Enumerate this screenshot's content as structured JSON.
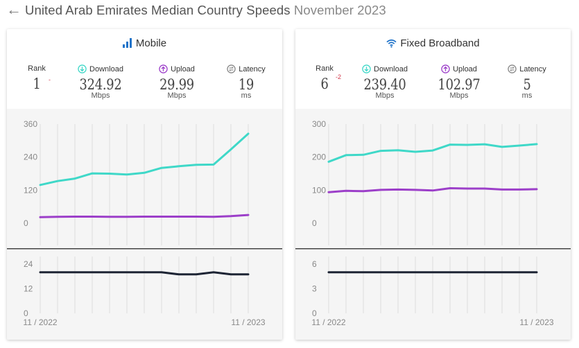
{
  "header": {
    "title": "United Arab Emirates Median Country Speeds",
    "period": "November 2023"
  },
  "colors": {
    "download": "#3fd8c8",
    "upload": "#9c3fc9",
    "latency": "#1d2434",
    "grid": "#dddddd",
    "rank_change": "#d2374b",
    "title_icon": "#1f73c9"
  },
  "cards": [
    {
      "key": "mobile",
      "title": "Mobile",
      "icon": "signal-bars-icon",
      "metrics": {
        "rank": {
          "label": "Rank",
          "value": "1",
          "change": "-"
        },
        "download": {
          "label": "Download",
          "value": "324.92",
          "unit": "Mbps"
        },
        "upload": {
          "label": "Upload",
          "value": "29.99",
          "unit": "Mbps"
        },
        "latency": {
          "label": "Latency",
          "value": "19",
          "unit": "ms"
        }
      }
    },
    {
      "key": "fixed",
      "title": "Fixed Broadband",
      "icon": "wifi-icon",
      "metrics": {
        "rank": {
          "label": "Rank",
          "value": "6",
          "change": "-2"
        },
        "download": {
          "label": "Download",
          "value": "239.40",
          "unit": "Mbps"
        },
        "upload": {
          "label": "Upload",
          "value": "102.97",
          "unit": "Mbps"
        },
        "latency": {
          "label": "Latency",
          "value": "5",
          "unit": "ms"
        }
      }
    }
  ],
  "chart_data": [
    {
      "id": "mobile-speed",
      "type": "line",
      "x": [
        "11/2022",
        "12/2022",
        "01/2023",
        "02/2023",
        "03/2023",
        "04/2023",
        "05/2023",
        "06/2023",
        "07/2023",
        "08/2023",
        "09/2023",
        "10/2023",
        "11/2023"
      ],
      "x_tick_labels": [
        "11 / 2022",
        "11 / 2023"
      ],
      "y_ticks": [
        "360",
        "240",
        "120",
        "0"
      ],
      "ylim": [
        0,
        360
      ],
      "series": [
        {
          "name": "Download",
          "values": [
            139,
            153,
            162,
            181,
            180,
            177,
            183,
            201,
            207,
            212,
            213,
            268,
            324.92
          ]
        },
        {
          "name": "Upload",
          "values": [
            22,
            23.5,
            24,
            24,
            23.5,
            23.5,
            24,
            24,
            24,
            24,
            23.5,
            26,
            29.99
          ]
        }
      ]
    },
    {
      "id": "mobile-latency",
      "type": "line",
      "x_tick_labels": [
        "11 / 2022",
        "11 / 2023"
      ],
      "y_ticks": [
        "24",
        "12",
        "0"
      ],
      "ylim": [
        0,
        24
      ],
      "series": [
        {
          "name": "Latency",
          "values": [
            20,
            20,
            20,
            20,
            20,
            20,
            20,
            20,
            19,
            19,
            20,
            19,
            19
          ]
        }
      ]
    },
    {
      "id": "fixed-speed",
      "type": "line",
      "x_tick_labels": [
        "11 / 2022",
        "11 / 2023"
      ],
      "y_ticks": [
        "300",
        "200",
        "100",
        "0"
      ],
      "ylim": [
        0,
        300
      ],
      "series": [
        {
          "name": "Download",
          "values": [
            186,
            206,
            207,
            219,
            221,
            216,
            220,
            238,
            237,
            239,
            231,
            235,
            239.4
          ]
        },
        {
          "name": "Upload",
          "values": [
            94,
            98,
            97,
            101,
            102,
            101,
            99,
            106,
            105,
            105,
            102,
            102,
            102.97
          ]
        }
      ]
    },
    {
      "id": "fixed-latency",
      "type": "line",
      "x_tick_labels": [
        "11 / 2022",
        "11 / 2023"
      ],
      "y_ticks": [
        "6",
        "3",
        "0"
      ],
      "ylim": [
        0,
        6
      ],
      "series": [
        {
          "name": "Latency",
          "values": [
            5,
            5,
            5,
            5,
            5,
            5,
            5,
            5,
            5,
            5,
            5,
            5,
            5
          ]
        }
      ]
    }
  ]
}
